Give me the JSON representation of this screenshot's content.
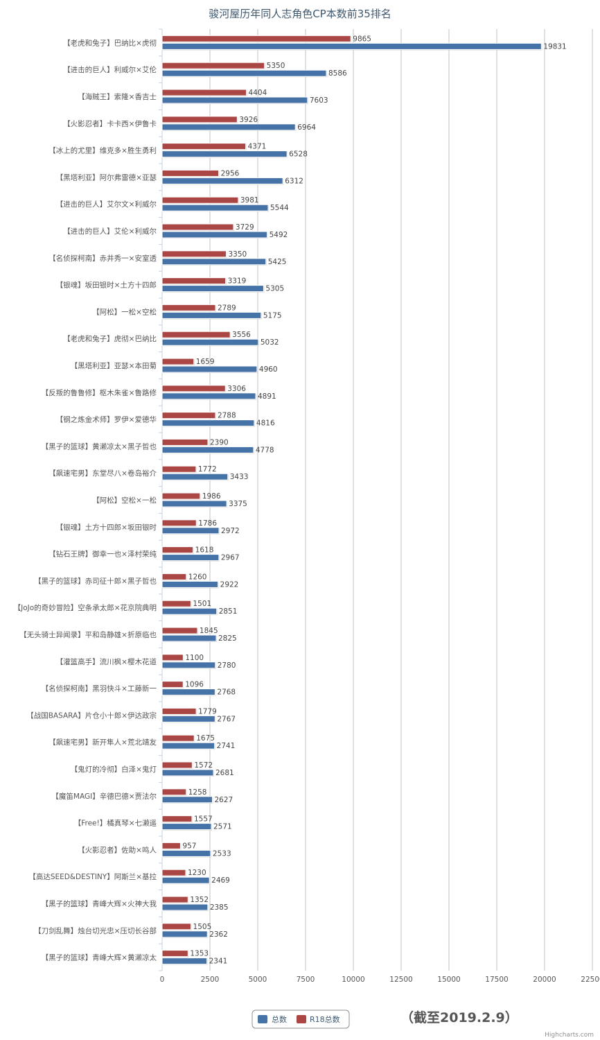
{
  "chart_data": {
    "type": "bar",
    "orientation": "horizontal",
    "title": "骏河屋历年同人志角色CP本数前35排名",
    "note": "（截至2019.2.9）",
    "credit": "Highcharts.com",
    "xlim": [
      0,
      22500
    ],
    "ticks": [
      0,
      2500,
      5000,
      7500,
      10000,
      12500,
      15000,
      17500,
      20000,
      22500
    ],
    "grid": true,
    "legend_position": "bottom-center",
    "categories": [
      "【老虎和兔子】巴纳比×虎彻",
      "【进击的巨人】利威尔×艾伦",
      "【海贼王】索隆×香吉士",
      "【火影忍者】卡卡西×伊鲁卡",
      "【冰上的尤里】维克多×胜生勇利",
      "【黑塔利亚】阿尔弗雷德×亚瑟",
      "【进击的巨人】艾尔文×利威尔",
      "【进击的巨人】艾伦×利威尔",
      "【名侦探柯南】赤井秀一×安室透",
      "【银魂】坂田银时×土方十四郎",
      "【阿松】一松×空松",
      "【老虎和兔子】虎彻×巴纳比",
      "【黑塔利亚】亚瑟×本田菊",
      "【反叛的鲁鲁修】枢木朱雀×鲁路修",
      "【钢之炼金术师】罗伊×爱德华",
      "【黑子的篮球】黄濑凉太×黑子哲也",
      "【飙速宅男】东堂尽八×卷岛裕介",
      "【阿松】空松×一松",
      "【银魂】土方十四郎×坂田银时",
      "【钻石王牌】御幸一也×泽村荣纯",
      "【黑子的篮球】赤司征十郎×黑子哲也",
      "【JoJo的奇妙冒险】空条承太郎×花京院典明",
      "【无头骑士异闻录】平和岛静雄×折原临也",
      "【灌篮高手】流川枫×樱木花道",
      "【名侦探柯南】黑羽快斗×工藤新一",
      "【战国BASARA】片仓小十郎×伊达政宗",
      "【飙速宅男】新开隼人×荒北靖友",
      "【鬼灯的冷彻】白泽×鬼灯",
      "【魔笛MAGI】辛德巴德×贾法尔",
      "【Free!】橘真琴×七濑遥",
      "【火影忍者】佐助×鸣人",
      "【高达SEED&DESTINY】阿斯兰×基拉",
      "【黑子的篮球】青峰大辉×火神大我",
      "【刀剑乱舞】烛台切光忠×压切长谷部",
      "【黑子的篮球】青峰大辉×黄濑凉太"
    ],
    "series": [
      {
        "name": "总数",
        "color": "#4572a7",
        "values": [
          19831,
          8586,
          7603,
          6964,
          6528,
          6312,
          5544,
          5492,
          5425,
          5305,
          5175,
          5032,
          4960,
          4891,
          4816,
          4778,
          3433,
          3375,
          2972,
          2967,
          2922,
          2851,
          2825,
          2780,
          2768,
          2767,
          2741,
          2681,
          2627,
          2571,
          2533,
          2469,
          2385,
          2362,
          2341
        ]
      },
      {
        "name": "R18总数",
        "color": "#aa4643",
        "values": [
          9865,
          5350,
          4404,
          3926,
          4371,
          2956,
          3981,
          3729,
          3350,
          3319,
          2789,
          3556,
          1659,
          3306,
          2788,
          2390,
          1772,
          1986,
          1786,
          1618,
          1260,
          1501,
          1845,
          1100,
          1096,
          1779,
          1675,
          1572,
          1258,
          1557,
          957,
          1230,
          1352,
          1505,
          1353
        ]
      }
    ]
  }
}
